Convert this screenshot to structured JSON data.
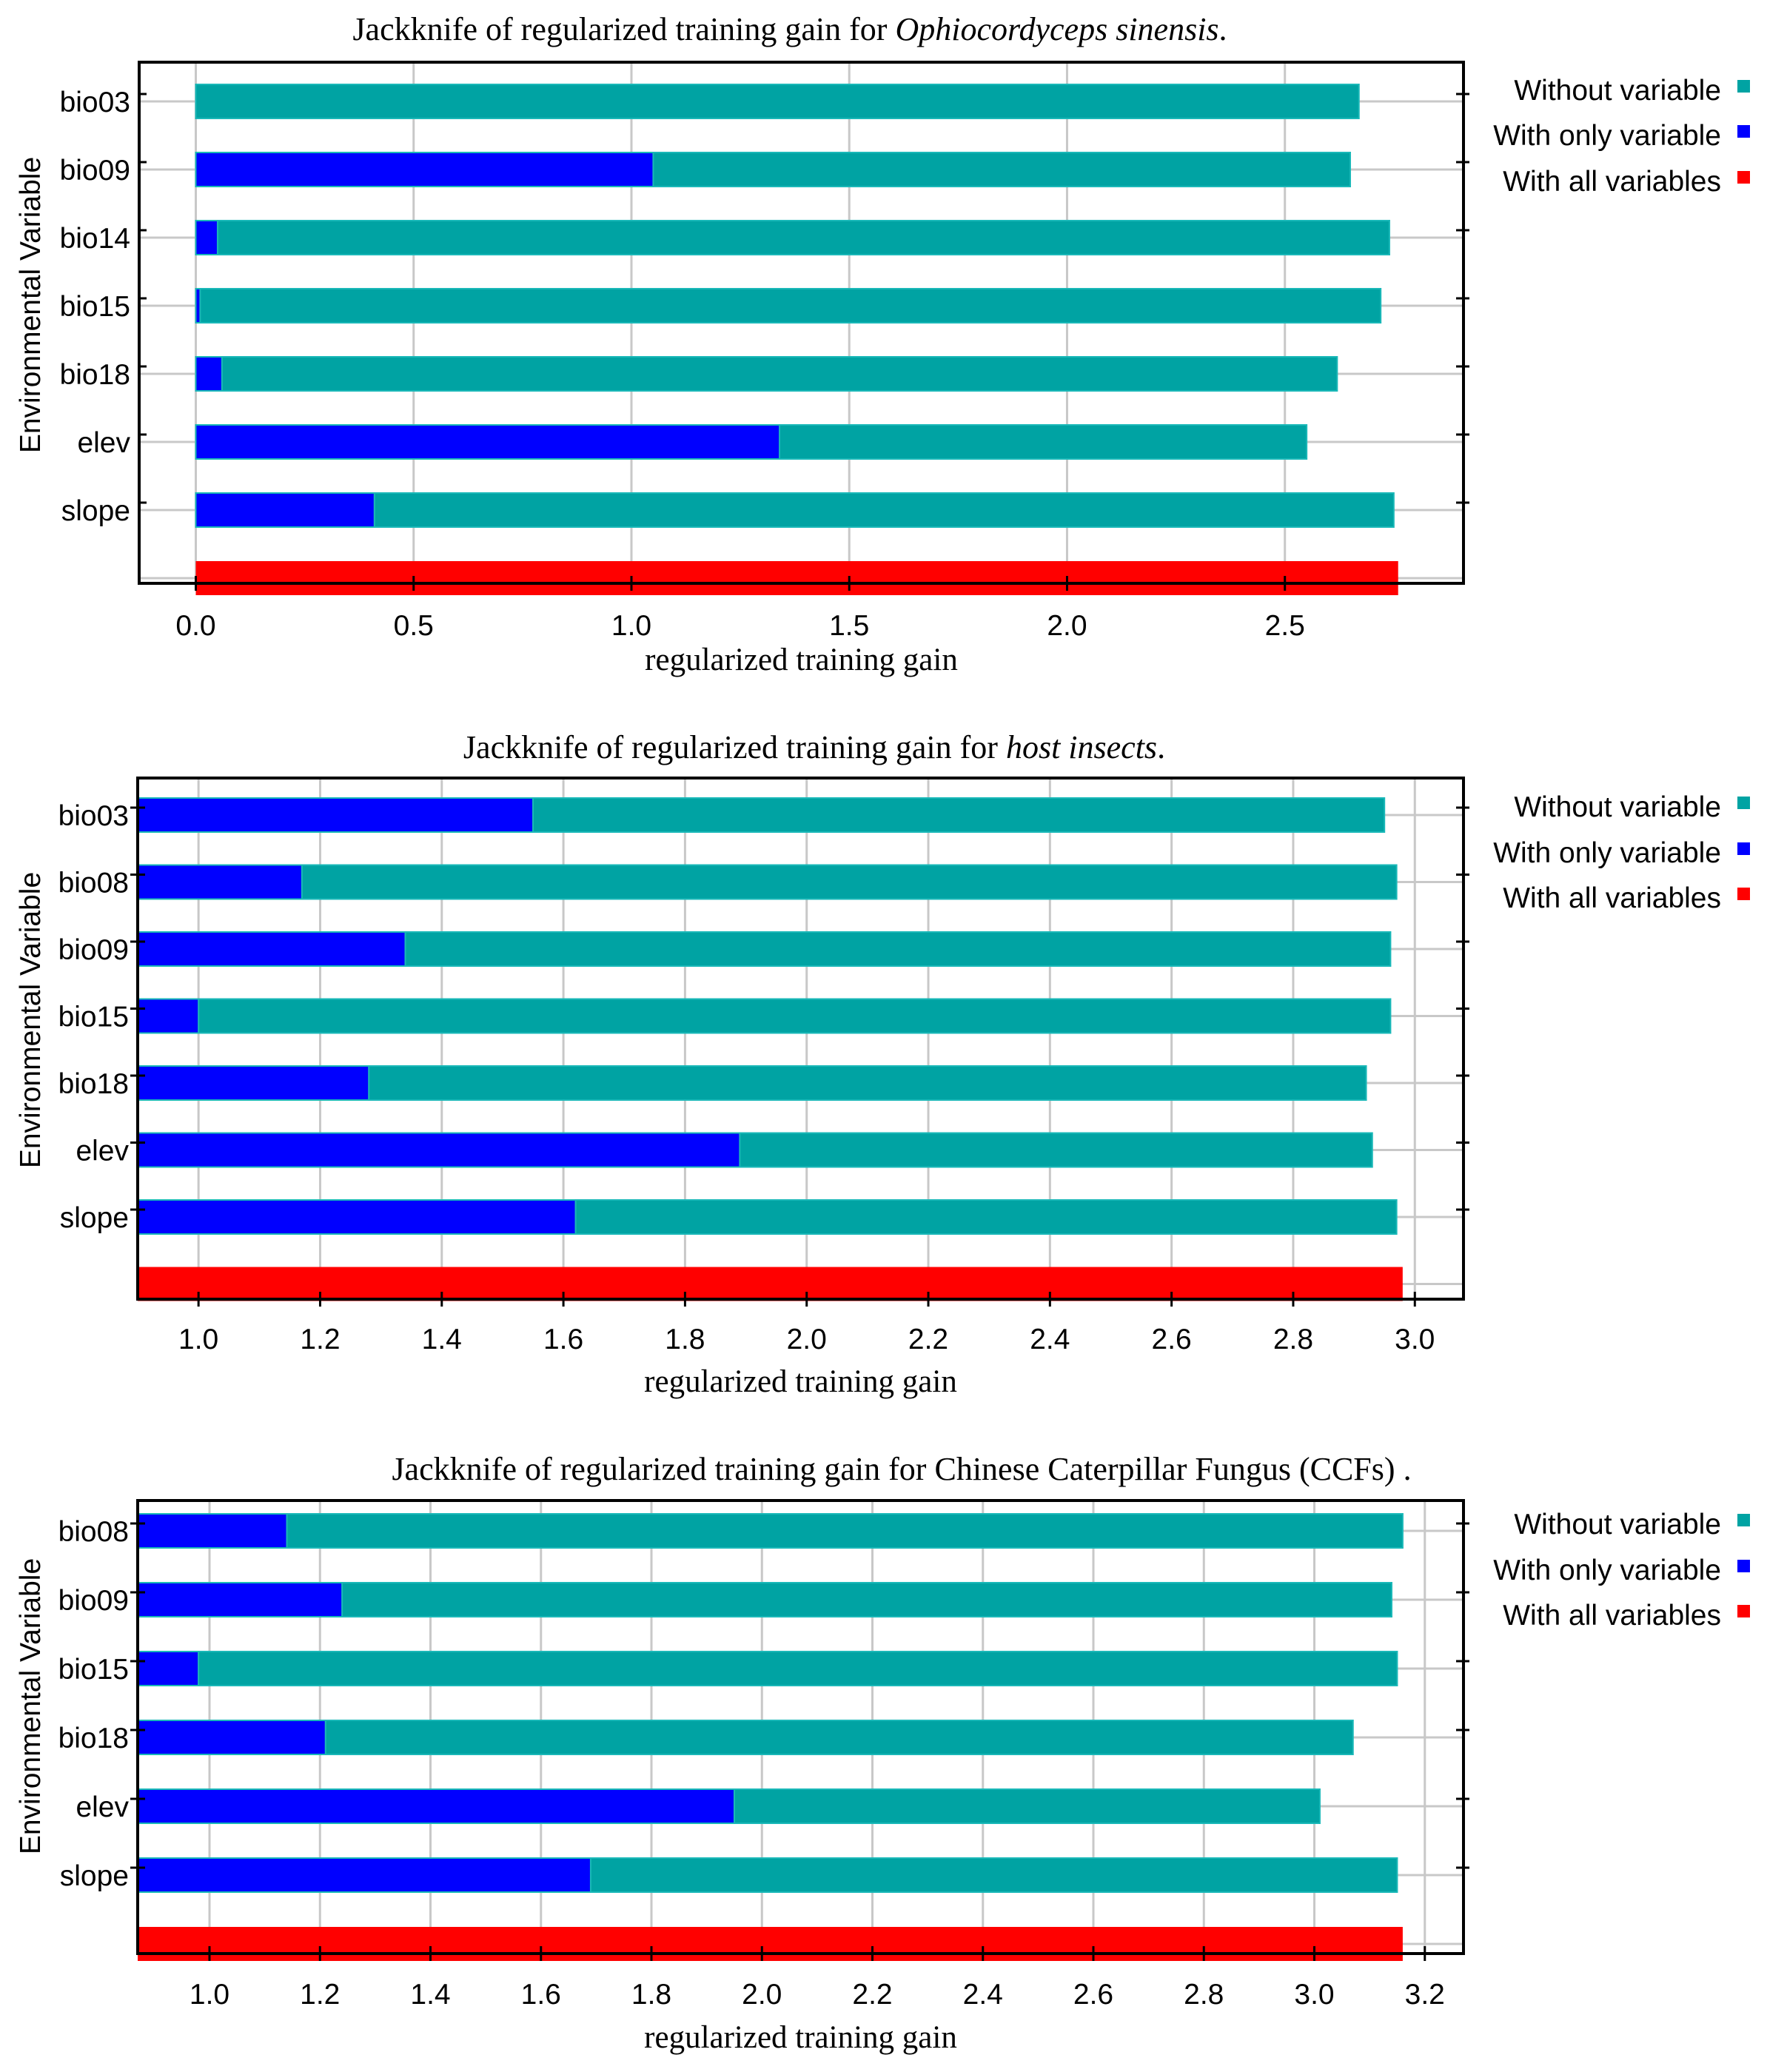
{
  "chart_data": [
    {
      "type": "bar",
      "orientation": "horizontal",
      "title_prefix": "Jackknife of regularized training gain for ",
      "title_subject": "Ophiocordyceps sinensis",
      "title_suffix": ".",
      "title_subject_italic": true,
      "xlabel": "regularized training gain",
      "ylabel": "Environmental Variable",
      "xlim": [
        -0.13,
        2.91
      ],
      "xticks": [
        0.0,
        0.5,
        1.0,
        1.5,
        2.0,
        2.5
      ],
      "xtick_labels": [
        "0.0",
        "0.5",
        "1.0",
        "1.5",
        "2.0",
        "2.5"
      ],
      "categories": [
        "bio03",
        "bio09",
        "bio14",
        "bio15",
        "bio18",
        "elev",
        "slope"
      ],
      "series": [
        {
          "name": "Without variable",
          "color": "#00a3a3",
          "values": [
            2.67,
            2.65,
            2.74,
            2.72,
            2.62,
            2.55,
            2.75
          ]
        },
        {
          "name": "With only variable",
          "color": "#0000ff",
          "values": [
            0.0,
            1.05,
            0.05,
            0.01,
            0.06,
            1.34,
            0.41
          ]
        }
      ],
      "all_variables": {
        "name": "With all variables",
        "color": "#ff0000",
        "value": 2.76
      },
      "legend": [
        "Without variable",
        "With only variable",
        "With all variables"
      ],
      "grid": true
    },
    {
      "type": "bar",
      "orientation": "horizontal",
      "title_prefix": "Jackknife of regularized training gain for ",
      "title_subject": "host insects",
      "title_suffix": ".",
      "title_subject_italic": true,
      "xlabel": "regularized training gain",
      "ylabel": "Environmental Variable",
      "xlim": [
        0.9,
        3.08
      ],
      "xticks": [
        1.0,
        1.2,
        1.4,
        1.6,
        1.8,
        2.0,
        2.2,
        2.4,
        2.6,
        2.8,
        3.0
      ],
      "xtick_labels": [
        "1.0",
        "1.2",
        "1.4",
        "1.6",
        "1.8",
        "2.0",
        "2.2",
        "2.4",
        "2.6",
        "2.8",
        "3.0"
      ],
      "categories": [
        "bio03",
        "bio08",
        "bio09",
        "bio15",
        "bio18",
        "elev",
        "slope"
      ],
      "series": [
        {
          "name": "Without variable",
          "color": "#00a3a3",
          "values": [
            2.95,
            2.97,
            2.96,
            2.96,
            2.92,
            2.93,
            2.97
          ]
        },
        {
          "name": "With only variable",
          "color": "#0000ff",
          "values": [
            1.55,
            1.17,
            1.34,
            1.0,
            1.28,
            1.89,
            1.62
          ]
        }
      ],
      "all_variables": {
        "name": "With all variables",
        "color": "#ff0000",
        "value": 2.98
      },
      "legend": [
        "Without variable",
        "With only variable",
        "With all variables"
      ],
      "grid": true
    },
    {
      "type": "bar",
      "orientation": "horizontal",
      "title_prefix": "Jackknife of regularized training gain for ",
      "title_subject": "Chinese Caterpillar Fungus (CCFs)",
      "title_suffix": " .",
      "title_subject_italic": false,
      "xlabel": "regularized training gain",
      "ylabel": "Environmental Variable",
      "xlim": [
        0.87,
        3.27
      ],
      "xticks": [
        1.0,
        1.2,
        1.4,
        1.6,
        1.8,
        2.0,
        2.2,
        2.4,
        2.6,
        2.8,
        3.0,
        3.2
      ],
      "xtick_labels": [
        "1.0",
        "1.2",
        "1.4",
        "1.6",
        "1.8",
        "2.0",
        "2.2",
        "2.4",
        "2.6",
        "2.8",
        "3.0",
        "3.2"
      ],
      "categories": [
        "bio08",
        "bio09",
        "bio15",
        "bio18",
        "elev",
        "slope"
      ],
      "series": [
        {
          "name": "Without variable",
          "color": "#00a3a3",
          "values": [
            3.16,
            3.14,
            3.15,
            3.07,
            3.01,
            3.15
          ]
        },
        {
          "name": "With only variable",
          "color": "#0000ff",
          "values": [
            1.14,
            1.24,
            0.98,
            1.21,
            1.95,
            1.69
          ]
        }
      ],
      "all_variables": {
        "name": "With all variables",
        "color": "#ff0000",
        "value": 3.16
      },
      "legend": [
        "Without variable",
        "With only variable",
        "With all variables"
      ],
      "grid": true
    }
  ]
}
